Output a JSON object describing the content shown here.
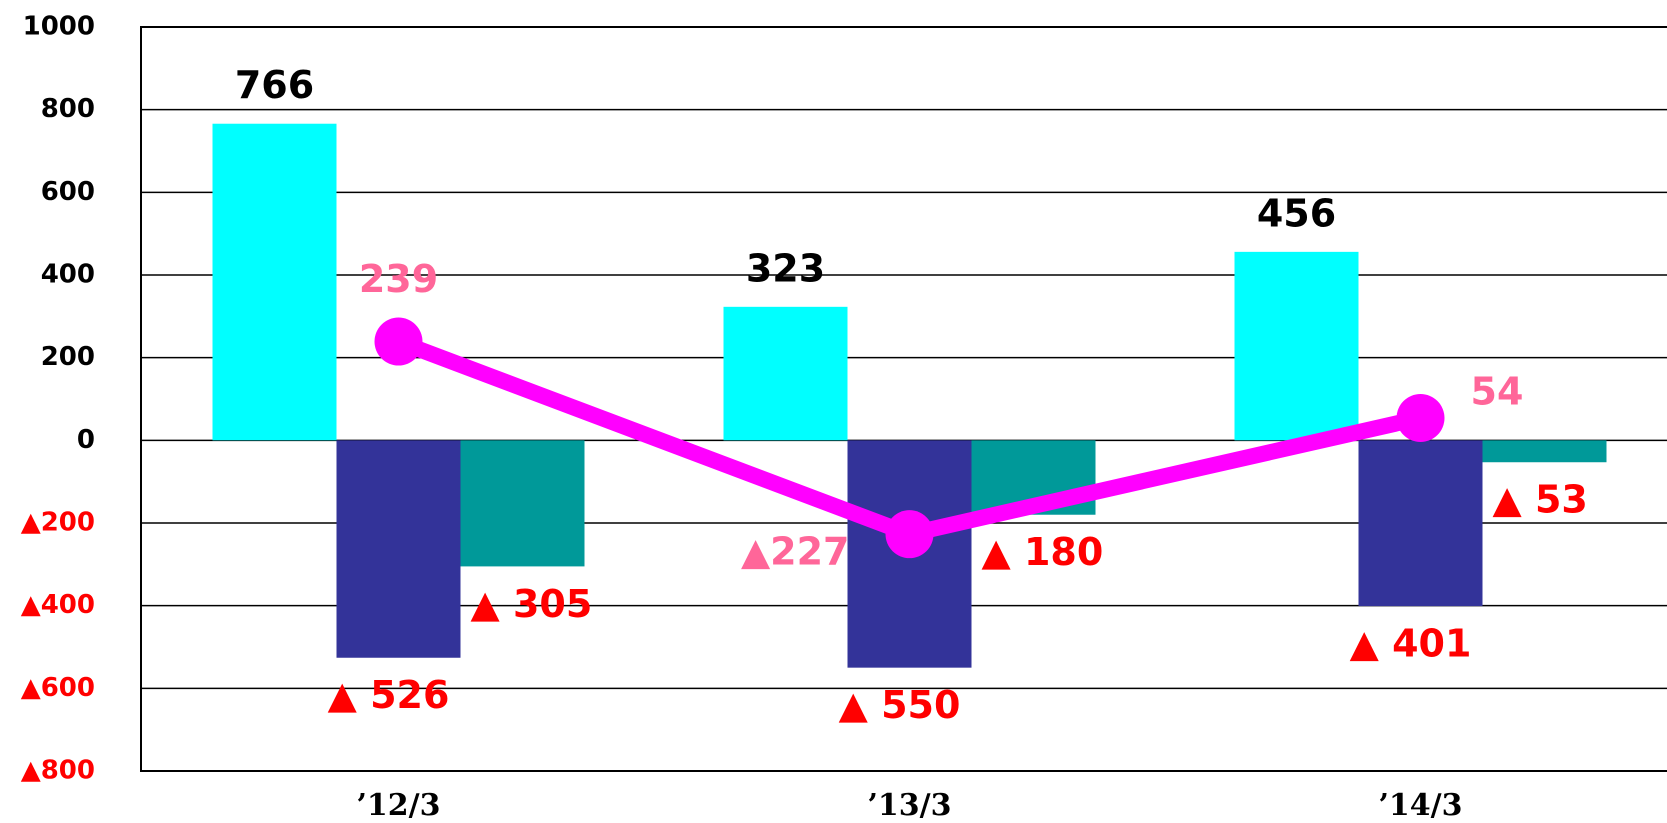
{
  "chart_data": {
    "type": "bar",
    "categories": [
      "’12/3",
      "’13/3",
      "’14/3"
    ],
    "series": [
      {
        "color": "#00ffff",
        "values": [
          766,
          323,
          456
        ],
        "label_color": "#000000"
      },
      {
        "color": "#333399",
        "values": [
          -526,
          -550,
          -401
        ],
        "value_labels": [
          "▲ 526",
          "▲ 550",
          "▲ 401"
        ],
        "label_color": "#ff0000"
      },
      {
        "color": "#009999",
        "values": [
          -305,
          -180,
          -53
        ],
        "value_labels": [
          "▲ 305",
          "▲ 180",
          "▲ 53"
        ],
        "label_color": "#ff0000"
      },
      {
        "type": "line",
        "color": "#ff00ff",
        "values": [
          239,
          -227,
          54
        ],
        "value_labels": [
          "239",
          "▲227",
          "54"
        ],
        "label_color": "#ff6699"
      }
    ],
    "ylim": [
      -800,
      1000
    ],
    "yticks": [
      1000,
      800,
      600,
      400,
      200,
      0,
      {
        "value": -200,
        "label": "▲200"
      },
      {
        "value": -400,
        "label": "▲400"
      },
      {
        "value": -600,
        "label": "▲600"
      },
      {
        "value": -800,
        "label": "▲800"
      }
    ],
    "grid": true
  }
}
